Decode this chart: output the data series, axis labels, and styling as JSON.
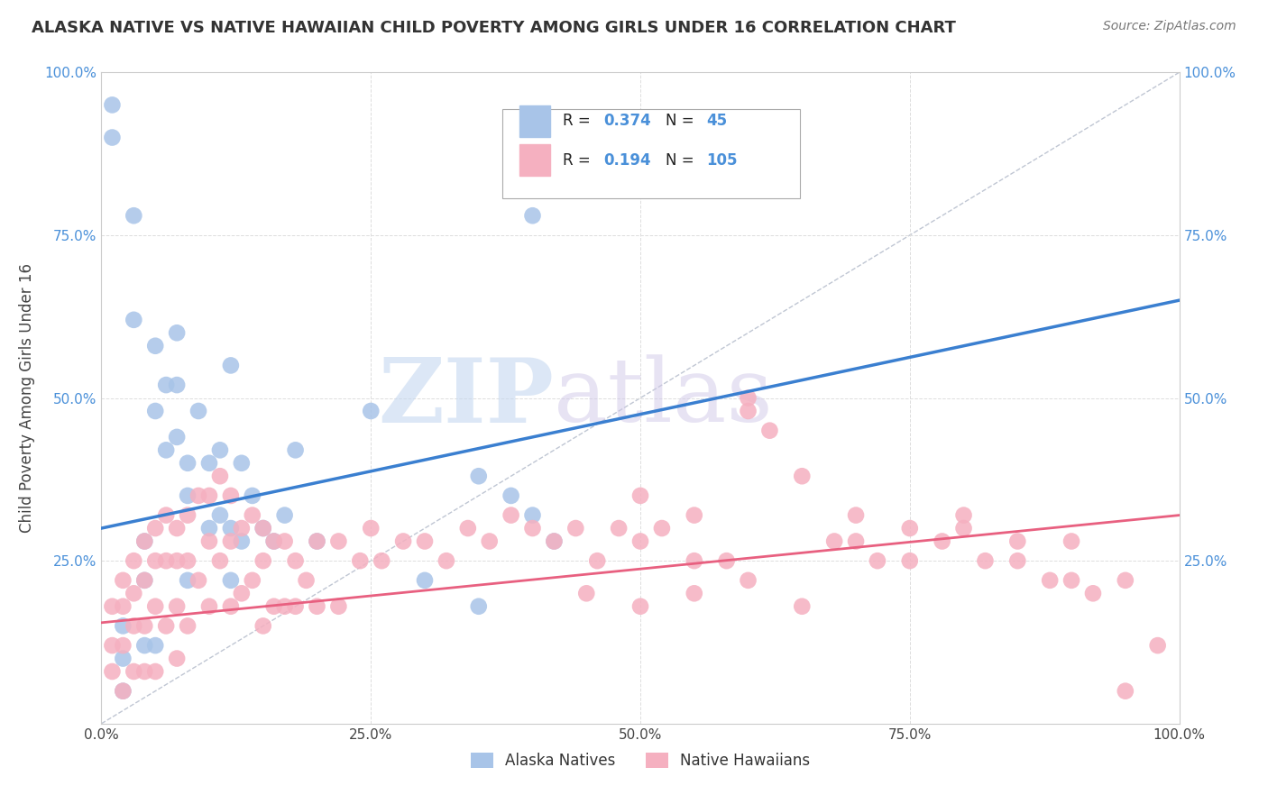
{
  "title": "ALASKA NATIVE VS NATIVE HAWAIIAN CHILD POVERTY AMONG GIRLS UNDER 16 CORRELATION CHART",
  "source": "Source: ZipAtlas.com",
  "ylabel": "Child Poverty Among Girls Under 16",
  "xlabel": "",
  "background_color": "#ffffff",
  "watermark_zip": "ZIP",
  "watermark_atlas": "atlas",
  "alaska_color": "#a8c4e8",
  "hawaii_color": "#f5b0c0",
  "alaska_line_color": "#3a7fd0",
  "hawaii_line_color": "#e86080",
  "diagonal_color": "#b0b8c8",
  "alaska_R": 0.374,
  "alaska_N": 45,
  "hawaii_R": 0.194,
  "hawaii_N": 105,
  "alaska_x": [
    0.01,
    0.01,
    0.02,
    0.02,
    0.02,
    0.03,
    0.03,
    0.04,
    0.04,
    0.04,
    0.05,
    0.05,
    0.05,
    0.06,
    0.06,
    0.07,
    0.07,
    0.07,
    0.08,
    0.08,
    0.09,
    0.1,
    0.1,
    0.11,
    0.11,
    0.12,
    0.12,
    0.13,
    0.13,
    0.14,
    0.15,
    0.16,
    0.17,
    0.18,
    0.2,
    0.25,
    0.3,
    0.35,
    0.4,
    0.42,
    0.35,
    0.38,
    0.4,
    0.12,
    0.08
  ],
  "alaska_y": [
    0.95,
    0.9,
    0.15,
    0.1,
    0.05,
    0.78,
    0.62,
    0.28,
    0.22,
    0.12,
    0.58,
    0.48,
    0.12,
    0.52,
    0.42,
    0.6,
    0.52,
    0.44,
    0.4,
    0.22,
    0.48,
    0.4,
    0.3,
    0.42,
    0.32,
    0.3,
    0.22,
    0.4,
    0.28,
    0.35,
    0.3,
    0.28,
    0.32,
    0.42,
    0.28,
    0.48,
    0.22,
    0.18,
    0.78,
    0.28,
    0.38,
    0.35,
    0.32,
    0.55,
    0.35
  ],
  "hawaii_x": [
    0.01,
    0.01,
    0.01,
    0.02,
    0.02,
    0.02,
    0.02,
    0.03,
    0.03,
    0.03,
    0.03,
    0.04,
    0.04,
    0.04,
    0.04,
    0.05,
    0.05,
    0.05,
    0.05,
    0.06,
    0.06,
    0.06,
    0.07,
    0.07,
    0.07,
    0.07,
    0.08,
    0.08,
    0.08,
    0.09,
    0.09,
    0.1,
    0.1,
    0.1,
    0.11,
    0.11,
    0.12,
    0.12,
    0.12,
    0.13,
    0.13,
    0.14,
    0.14,
    0.15,
    0.15,
    0.15,
    0.16,
    0.16,
    0.17,
    0.17,
    0.18,
    0.18,
    0.19,
    0.2,
    0.2,
    0.22,
    0.22,
    0.24,
    0.25,
    0.26,
    0.28,
    0.3,
    0.32,
    0.34,
    0.36,
    0.38,
    0.4,
    0.42,
    0.44,
    0.46,
    0.48,
    0.5,
    0.5,
    0.52,
    0.55,
    0.58,
    0.6,
    0.62,
    0.65,
    0.68,
    0.7,
    0.72,
    0.75,
    0.78,
    0.8,
    0.82,
    0.85,
    0.88,
    0.9,
    0.92,
    0.95,
    0.55,
    0.6,
    0.65,
    0.7,
    0.75,
    0.8,
    0.85,
    0.9,
    0.95,
    0.45,
    0.5,
    0.55,
    0.6,
    0.98
  ],
  "hawaii_y": [
    0.18,
    0.12,
    0.08,
    0.22,
    0.18,
    0.12,
    0.05,
    0.25,
    0.2,
    0.15,
    0.08,
    0.28,
    0.22,
    0.15,
    0.08,
    0.3,
    0.25,
    0.18,
    0.08,
    0.32,
    0.25,
    0.15,
    0.3,
    0.25,
    0.18,
    0.1,
    0.32,
    0.25,
    0.15,
    0.35,
    0.22,
    0.35,
    0.28,
    0.18,
    0.38,
    0.25,
    0.35,
    0.28,
    0.18,
    0.3,
    0.2,
    0.32,
    0.22,
    0.3,
    0.25,
    0.15,
    0.28,
    0.18,
    0.28,
    0.18,
    0.25,
    0.18,
    0.22,
    0.28,
    0.18,
    0.28,
    0.18,
    0.25,
    0.3,
    0.25,
    0.28,
    0.28,
    0.25,
    0.3,
    0.28,
    0.32,
    0.3,
    0.28,
    0.3,
    0.25,
    0.3,
    0.35,
    0.28,
    0.3,
    0.32,
    0.25,
    0.5,
    0.45,
    0.38,
    0.28,
    0.32,
    0.25,
    0.3,
    0.28,
    0.32,
    0.25,
    0.28,
    0.22,
    0.28,
    0.2,
    0.22,
    0.2,
    0.22,
    0.18,
    0.28,
    0.25,
    0.3,
    0.25,
    0.22,
    0.05,
    0.2,
    0.18,
    0.25,
    0.48,
    0.12
  ],
  "xlim": [
    0.0,
    1.0
  ],
  "ylim": [
    0.0,
    1.0
  ],
  "x_ticks": [
    0.0,
    0.25,
    0.5,
    0.75,
    1.0
  ],
  "x_tick_labels": [
    "0.0%",
    "25.0%",
    "50.0%",
    "75.0%",
    "100.0%"
  ],
  "y_ticks": [
    0.0,
    0.25,
    0.5,
    0.75,
    1.0
  ],
  "y_tick_labels": [
    "",
    "25.0%",
    "50.0%",
    "75.0%",
    "100.0%"
  ]
}
